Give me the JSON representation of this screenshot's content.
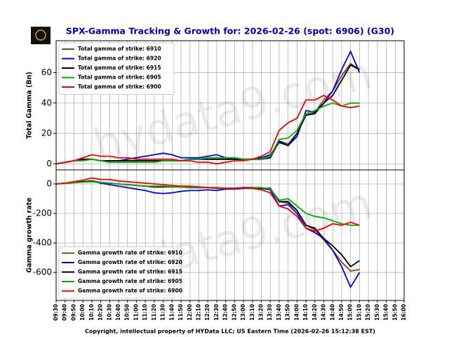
{
  "title": "SPX-Gamma Tracking & Growth for: 2026-02-26 (spot: 6906) (G30)",
  "footer": "Copyright, intellectual property of HYData LLC; US Eastern Time (2026-02-26 15:12:38 EST)",
  "watermark": "hydata9.com",
  "chart_data": [
    {
      "type": "line",
      "ylabel": "Total Gamma (Bn)",
      "legend": "upper left",
      "grid": true,
      "ylim": [
        -4,
        81
      ],
      "yticks": [
        0,
        20,
        40,
        60
      ],
      "x": [
        "09:30",
        "09:40",
        "09:50",
        "10:00",
        "10:10",
        "10:20",
        "10:30",
        "10:40",
        "10:50",
        "11:00",
        "11:10",
        "11:20",
        "11:30",
        "11:40",
        "11:50",
        "12:00",
        "12:10",
        "12:20",
        "12:30",
        "12:40",
        "12:50",
        "13:00",
        "13:10",
        "13:20",
        "13:30",
        "13:40",
        "13:50",
        "14:00",
        "14:10",
        "14:20",
        "14:30",
        "14:40",
        "14:50",
        "15:00",
        "15:10"
      ],
      "series": [
        {
          "name": "Total gamma of strike: 6910",
          "color": "#8b4513",
          "values": [
            0,
            1,
            2,
            3,
            3,
            2,
            2,
            2,
            2,
            2,
            2,
            2,
            2,
            2,
            2,
            3,
            3,
            3,
            3,
            3,
            3,
            3,
            3,
            3,
            4,
            15,
            13,
            20,
            32,
            34,
            42,
            48,
            58,
            66,
            62
          ]
        },
        {
          "name": "Total gamma of strike: 6920",
          "color": "#0000ff",
          "values": [
            0,
            1,
            2,
            3,
            3,
            2,
            2,
            2,
            3,
            4,
            5,
            6,
            7,
            6,
            4,
            4,
            4,
            5,
            6,
            4,
            3,
            3,
            3,
            4,
            6,
            14,
            12,
            18,
            35,
            34,
            40,
            48,
            62,
            74,
            60
          ]
        },
        {
          "name": "Total gamma of strike: 6915",
          "color": "#000000",
          "values": [
            0,
            1,
            2,
            3,
            3,
            2,
            2,
            2,
            2,
            2,
            2,
            2,
            2,
            2,
            2,
            3,
            3,
            3,
            3,
            3,
            3,
            3,
            3,
            3,
            4,
            15,
            12,
            20,
            32,
            33,
            40,
            45,
            55,
            65,
            62
          ]
        },
        {
          "name": "Total gamma of strike: 6905",
          "color": "#00b000",
          "values": [
            0,
            1,
            2,
            2,
            3,
            2,
            1,
            1,
            1,
            1,
            1,
            1,
            2,
            2,
            2,
            3,
            3,
            4,
            4,
            4,
            4,
            3,
            3,
            3,
            5,
            16,
            17,
            22,
            33,
            35,
            38,
            40,
            38,
            40,
            40
          ]
        },
        {
          "name": "Total gamma of strike: 6900",
          "color": "#ff0000",
          "values": [
            0,
            1,
            2,
            4,
            6,
            5,
            5,
            4,
            4,
            3,
            3,
            3,
            3,
            3,
            2,
            2,
            1,
            1,
            0,
            1,
            2,
            2,
            3,
            5,
            8,
            22,
            27,
            30,
            42,
            42,
            45,
            42,
            38,
            37,
            38
          ]
        }
      ]
    },
    {
      "type": "line",
      "ylabel": "Gamma growth rate",
      "legend": "lower left",
      "grid": true,
      "ylim": [
        -790,
        95
      ],
      "yticks": [
        0,
        -200,
        -400,
        -600
      ],
      "xticks": [
        "09:30",
        "09:40",
        "09:50",
        "10:00",
        "10:10",
        "10:20",
        "10:30",
        "10:40",
        "10:50",
        "11:00",
        "11:10",
        "11:20",
        "11:30",
        "11:40",
        "11:50",
        "12:00",
        "12:10",
        "12:20",
        "12:30",
        "12:40",
        "12:50",
        "13:00",
        "13:10",
        "13:20",
        "13:30",
        "13:40",
        "13:50",
        "14:00",
        "14:10",
        "14:20",
        "14:30",
        "14:40",
        "14:50",
        "15:00",
        "15:10",
        "15:20",
        "15:30",
        "15:40",
        "15:50",
        "16:00"
      ],
      "x": [
        "09:30",
        "09:40",
        "09:50",
        "10:00",
        "10:10",
        "10:20",
        "10:30",
        "10:40",
        "10:50",
        "11:00",
        "11:10",
        "11:20",
        "11:30",
        "11:40",
        "11:50",
        "12:00",
        "12:10",
        "12:20",
        "12:30",
        "12:40",
        "12:50",
        "13:00",
        "13:10",
        "13:20",
        "13:30",
        "13:40",
        "13:50",
        "14:00",
        "14:10",
        "14:20",
        "14:30",
        "14:40",
        "14:50",
        "15:00",
        "15:10"
      ],
      "series": [
        {
          "name": "Gamma growth rate of strike: 6910",
          "color": "#8b4513",
          "values": [
            0,
            5,
            10,
            15,
            20,
            10,
            5,
            0,
            -5,
            -10,
            -15,
            -20,
            -20,
            -20,
            -20,
            -25,
            -25,
            -25,
            -30,
            -30,
            -30,
            -25,
            -25,
            -30,
            -30,
            -120,
            -130,
            -180,
            -280,
            -310,
            -380,
            -450,
            -530,
            -590,
            -580
          ]
        },
        {
          "name": "Gamma growth rate of strike: 6920",
          "color": "#0000ff",
          "values": [
            0,
            5,
            10,
            15,
            20,
            5,
            -5,
            -15,
            -25,
            -35,
            -45,
            -60,
            -65,
            -60,
            -50,
            -45,
            -45,
            -40,
            -45,
            -35,
            -35,
            -30,
            -30,
            -30,
            -40,
            -150,
            -140,
            -200,
            -300,
            -330,
            -370,
            -450,
            -560,
            -700,
            -600
          ]
        },
        {
          "name": "Gamma growth rate of strike: 6915",
          "color": "#000000",
          "values": [
            0,
            5,
            10,
            15,
            20,
            10,
            5,
            0,
            -5,
            -10,
            -15,
            -20,
            -20,
            -20,
            -20,
            -25,
            -25,
            -25,
            -30,
            -30,
            -30,
            -25,
            -25,
            -30,
            -30,
            -120,
            -120,
            -180,
            -280,
            -300,
            -370,
            -420,
            -480,
            -560,
            -520
          ]
        },
        {
          "name": "Gamma growth rate of strike: 6905",
          "color": "#00b000",
          "values": [
            0,
            3,
            8,
            12,
            15,
            10,
            5,
            0,
            -5,
            -10,
            -15,
            -15,
            -15,
            -20,
            -20,
            -25,
            -25,
            -25,
            -30,
            -30,
            -30,
            -25,
            -25,
            -25,
            -35,
            -110,
            -100,
            -150,
            -200,
            -220,
            -230,
            -250,
            -270,
            -280,
            -280
          ]
        },
        {
          "name": "Gamma growth rate of strike: 6900",
          "color": "#ff0000",
          "values": [
            0,
            5,
            15,
            25,
            40,
            30,
            30,
            20,
            15,
            10,
            5,
            0,
            -5,
            -10,
            -15,
            -15,
            -20,
            -25,
            -25,
            -30,
            -30,
            -25,
            -30,
            -40,
            -60,
            -150,
            -170,
            -220,
            -300,
            -320,
            -300,
            -270,
            -280,
            -260,
            -280
          ]
        }
      ]
    }
  ]
}
